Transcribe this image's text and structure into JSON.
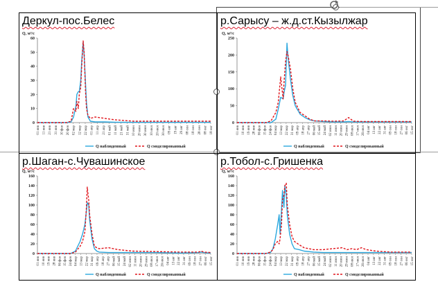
{
  "titles": [
    "Деркул-пос.Белес",
    "р.Сарысу – ж.д.ст.Кызылжар",
    "р.Шаган-с.Чувашинское",
    "р.Тобол-с.Гришенка"
  ],
  "legend": {
    "observed": "Q наблюденный",
    "modeled": "Q смоделированный"
  },
  "colors": {
    "observed": "#2aa7de",
    "modeled": "#e0131a",
    "axis": "#7a7a7a"
  },
  "chart_data": [
    {
      "type": "line",
      "title": "Деркул-пос.Белес",
      "ylabel": "Q, м³/с",
      "ylim": [
        0,
        60
      ],
      "yticks": [
        0,
        10,
        20,
        30,
        40,
        50,
        60
      ],
      "xlim": [
        0,
        360
      ],
      "xticks": [
        "01 янв",
        "11 янв",
        "21 янв",
        "31 янв",
        "10 фев",
        "20 фев",
        "02 мар",
        "12 мар",
        "22 мар",
        "01 апр",
        "11 апр",
        "21 апр",
        "01 май",
        "11 май",
        "21 май",
        "31 май",
        "10 июн",
        "20 июн",
        "30 июн",
        "10 июл",
        "20 июл",
        "30 июл",
        "09 авг",
        "19 авг",
        "29 авг",
        "08 сен",
        "18 сен",
        "28 сен",
        "08 окт",
        "18 окт"
      ],
      "x": [
        0,
        60,
        70,
        75,
        80,
        82,
        85,
        87,
        90,
        92,
        95,
        97,
        100,
        102,
        105,
        110,
        120,
        140,
        160,
        200,
        250,
        300,
        360
      ],
      "series": [
        {
          "name": "Q наблюденный",
          "values": [
            0,
            0,
            0.5,
            4,
            12,
            20,
            22,
            22,
            30,
            44,
            57,
            48,
            28,
            14,
            4,
            1,
            0.5,
            0.5,
            0.3,
            0.2,
            0.2,
            0.2,
            0.2
          ]
        },
        {
          "name": "Q смоделированный",
          "values": [
            0,
            0,
            1,
            10,
            8,
            15,
            10,
            20,
            25,
            40,
            58,
            50,
            22,
            10,
            5,
            3,
            4,
            3,
            2,
            1,
            1,
            1,
            1
          ]
        }
      ]
    },
    {
      "type": "line",
      "title": "р.Сарысу – ж.д.ст.Кызылжар",
      "ylabel": "Q, м³/с",
      "ylim": [
        0,
        250
      ],
      "yticks": [
        0,
        50,
        100,
        150,
        200,
        250
      ],
      "xlim": [
        0,
        360
      ],
      "xticks": [
        "01 янв",
        "10 янв",
        "19 янв",
        "28 янв",
        "06 фев",
        "15 фев",
        "24 фев",
        "04 мар",
        "13 мар",
        "22 мар",
        "31 мар",
        "09 апр",
        "18 апр",
        "27 апр",
        "06 май",
        "15 май",
        "24 май",
        "02 июн",
        "11 июн",
        "20 июн",
        "29 июн",
        "08 июл",
        "17 июл",
        "26 июл",
        "04 авг",
        "13 авг",
        "22 авг",
        "31 авг",
        "09 сен",
        "18 сен",
        "27 сен",
        "06 окт",
        "15 окт"
      ],
      "x": [
        0,
        60,
        70,
        80,
        85,
        90,
        95,
        97,
        100,
        103,
        105,
        110,
        115,
        120,
        130,
        140,
        150,
        160,
        180,
        200,
        220,
        230,
        240,
        260,
        300,
        360
      ],
      "series": [
        {
          "name": "Q наблюденный",
          "values": [
            0,
            0,
            0,
            10,
            40,
            75,
            70,
            90,
            110,
            235,
            195,
            130,
            80,
            50,
            25,
            15,
            8,
            5,
            3,
            2,
            2,
            3,
            2,
            2,
            2,
            2
          ]
        },
        {
          "name": "Q смоделированный",
          "values": [
            0,
            0,
            5,
            30,
            60,
            135,
            70,
            120,
            180,
            210,
            200,
            160,
            100,
            60,
            30,
            20,
            10,
            5,
            5,
            4,
            5,
            15,
            4,
            3,
            3,
            3
          ]
        }
      ]
    },
    {
      "type": "line",
      "title": "р.Шаган-с.Чувашинское",
      "ylabel": "Q, м³/с",
      "ylim": [
        0,
        160
      ],
      "yticks": [
        0,
        20,
        40,
        60,
        80,
        100,
        120,
        140,
        160
      ],
      "xlim": [
        0,
        365
      ],
      "xticks": [
        "01 янв",
        "10 янв",
        "19 янв",
        "28 янв",
        "06 фев",
        "15 фев",
        "24 фев",
        "04 мар",
        "13 мар",
        "22 мар",
        "31 мар",
        "09 апр",
        "18 апр",
        "27 апр",
        "06 май",
        "15 май",
        "24 май",
        "02 июн",
        "11 июн",
        "20 июн",
        "29 июн",
        "08 июл",
        "17 июл",
        "26 июл",
        "04 авг",
        "13 авг",
        "22 авг",
        "31 авг",
        "09 сен",
        "18 сен",
        "27 сен",
        "06 окт",
        "15 окт"
      ],
      "x": [
        0,
        70,
        80,
        90,
        95,
        100,
        103,
        105,
        108,
        110,
        115,
        120,
        125,
        130,
        150,
        170,
        200,
        250,
        300,
        340,
        345,
        350,
        365
      ],
      "series": [
        {
          "name": "Q наблюденный",
          "values": [
            0,
            0,
            5,
            25,
            40,
            60,
            85,
            105,
            100,
            70,
            30,
            10,
            5,
            3,
            2,
            2,
            2,
            2,
            1,
            2,
            3,
            2,
            1
          ]
        },
        {
          "name": "Q смоделированный",
          "values": [
            0,
            0,
            3,
            15,
            25,
            45,
            90,
            137,
            110,
            80,
            40,
            15,
            12,
            10,
            12,
            8,
            5,
            4,
            3,
            3,
            5,
            3,
            2
          ]
        }
      ]
    },
    {
      "type": "line",
      "title": "р.Тобол-с.Гришенка",
      "ylabel": "Q, м³/с",
      "ylim": [
        0,
        160
      ],
      "yticks": [
        0,
        20,
        40,
        60,
        80,
        100,
        120,
        140,
        160
      ],
      "xlim": [
        0,
        365
      ],
      "xticks": [
        "01 янв",
        "10 янв",
        "19 янв",
        "28 янв",
        "06 фев",
        "15 фев",
        "24 фев",
        "04 мар",
        "13 мар",
        "22 мар",
        "31 мар",
        "09 апр",
        "18 апр",
        "27 апр",
        "06 май",
        "15 май",
        "24 май",
        "02 июн",
        "11 июн",
        "20 июн",
        "29 июн",
        "08 июл",
        "17 июл",
        "26 июл",
        "04 авг",
        "13 авг",
        "22 авг",
        "31 авг",
        "09 сен",
        "18 сен",
        "27 сен",
        "06 окт",
        "15 окт"
      ],
      "x": [
        0,
        60,
        70,
        75,
        80,
        85,
        88,
        90,
        93,
        95,
        98,
        100,
        103,
        105,
        110,
        115,
        120,
        130,
        140,
        160,
        180,
        200,
        220,
        230,
        240,
        250,
        260,
        270,
        290,
        320,
        365
      ],
      "series": [
        {
          "name": "Q наблюденный",
          "values": [
            0,
            0,
            2,
            10,
            30,
            60,
            80,
            40,
            90,
            130,
            95,
            140,
            120,
            80,
            40,
            20,
            10,
            8,
            5,
            3,
            2,
            2,
            2,
            2,
            2,
            2,
            2,
            2,
            2,
            2,
            2
          ]
        },
        {
          "name": "Q смоделированный",
          "values": [
            0,
            0,
            3,
            8,
            20,
            25,
            20,
            30,
            60,
            110,
            120,
            140,
            145,
            100,
            60,
            35,
            25,
            18,
            12,
            8,
            8,
            10,
            12,
            8,
            10,
            8,
            12,
            8,
            5,
            3,
            3
          ]
        }
      ]
    }
  ]
}
